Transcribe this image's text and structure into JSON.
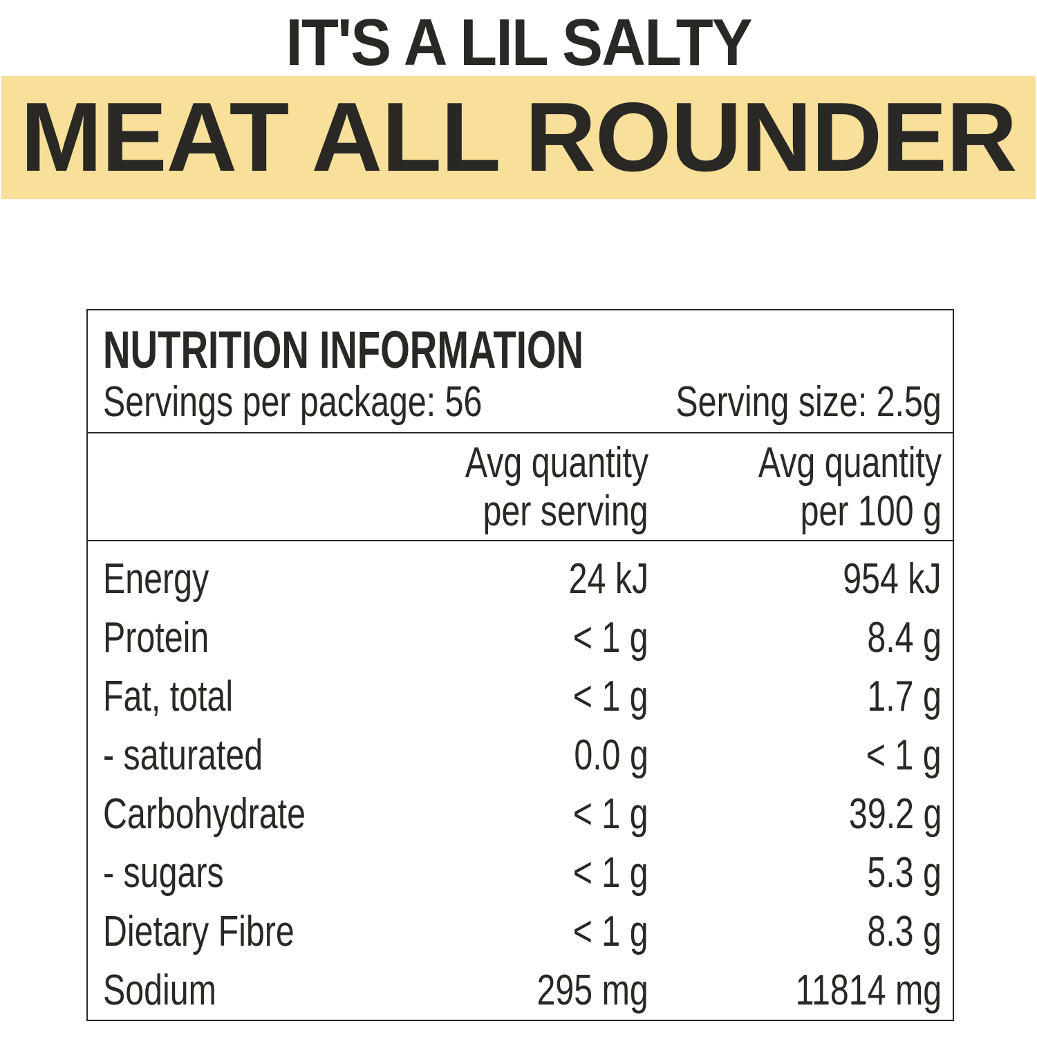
{
  "header": {
    "subtitle": "IT'S A LIL SALTY",
    "title": "MEAT ALL ROUNDER",
    "banner_color": "#f8e09a",
    "text_color": "#2a2824"
  },
  "nutrition": {
    "title": "NUTRITION INFORMATION",
    "servings_per_package": "Servings per package: 56",
    "serving_size": "Serving size: 2.5g",
    "col_serving": [
      "Avg quantity",
      "per serving"
    ],
    "col_100g": [
      "Avg quantity",
      "per 100 g"
    ],
    "rows": [
      {
        "label": "Energy",
        "serving": "24 kJ",
        "per100": "954 kJ"
      },
      {
        "label": "Protein",
        "serving": "< 1 g",
        "per100": "8.4 g"
      },
      {
        "label": "Fat, total",
        "serving": "< 1 g",
        "per100": "1.7 g"
      },
      {
        "label": "- saturated",
        "serving": "0.0 g",
        "per100": "< 1 g"
      },
      {
        "label": "Carbohydrate",
        "serving": "< 1 g",
        "per100": "39.2 g"
      },
      {
        "label": "- sugars",
        "serving": "< 1 g",
        "per100": "5.3 g"
      },
      {
        "label": "Dietary Fibre",
        "serving": "< 1 g",
        "per100": "8.3 g"
      },
      {
        "label": "Sodium",
        "serving": "295 mg",
        "per100": "11814 mg"
      }
    ]
  }
}
